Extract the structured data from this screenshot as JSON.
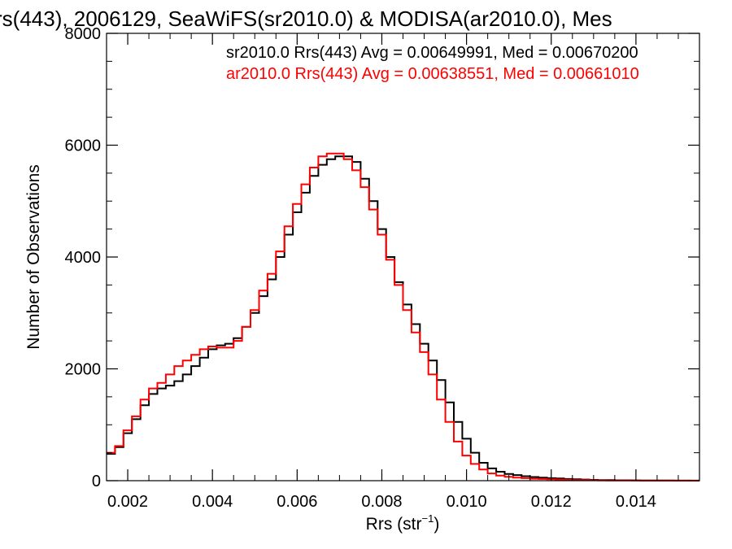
{
  "chart_data": {
    "type": "line",
    "step": true,
    "title": "rs(443), 2006129, SeaWiFS(sr2010.0) & MODISA(ar2010.0), Mes",
    "xlabel": "Rrs (str",
    "xlabel_superscript": "−1",
    "xlabel_suffix": ")",
    "ylabel": "Number of Observations",
    "xlim": [
      0.0015,
      0.0155
    ],
    "ylim": [
      0,
      8000
    ],
    "x_ticks": [
      0.002,
      0.004,
      0.006,
      0.008,
      0.01,
      0.012,
      0.014
    ],
    "x_tick_labels": [
      "0.002",
      "0.004",
      "0.006",
      "0.008",
      "0.010",
      "0.012",
      "0.014"
    ],
    "y_ticks": [
      0,
      2000,
      4000,
      6000,
      8000
    ],
    "y_tick_labels": [
      "0",
      "2000",
      "4000",
      "6000",
      "8000"
    ],
    "grid": false,
    "annotations": [
      {
        "text": "sr2010.0 Rrs(443) Avg = 0.00649991, Med = 0.00670200",
        "color": "#000000"
      },
      {
        "text": "ar2010.0 Rrs(443) Avg = 0.00638551, Med = 0.00661010",
        "color": "#ff0000"
      }
    ],
    "series": [
      {
        "color": "#000000",
        "x": [
          0.0015,
          0.0017,
          0.0019,
          0.0021,
          0.0023,
          0.0025,
          0.0027,
          0.0029,
          0.0031,
          0.0033,
          0.0035,
          0.0037,
          0.0039,
          0.0041,
          0.0043,
          0.0045,
          0.0047,
          0.0049,
          0.0051,
          0.0053,
          0.0055,
          0.0057,
          0.0059,
          0.0061,
          0.0063,
          0.0065,
          0.0067,
          0.0069,
          0.0071,
          0.0073,
          0.0075,
          0.0077,
          0.0079,
          0.0081,
          0.0083,
          0.0085,
          0.0087,
          0.0089,
          0.0091,
          0.0093,
          0.0095,
          0.0097,
          0.0099,
          0.0101,
          0.0103,
          0.0105,
          0.0107,
          0.0109,
          0.0111,
          0.0113,
          0.0115,
          0.0117,
          0.0119,
          0.0121,
          0.0123,
          0.0125,
          0.0127,
          0.0129,
          0.0131,
          0.0133,
          0.0135,
          0.0137,
          0.0139,
          0.0141,
          0.0143,
          0.0145,
          0.0147,
          0.0149,
          0.0151,
          0.0153,
          0.0155
        ],
        "y": [
          480,
          600,
          850,
          1100,
          1350,
          1550,
          1650,
          1700,
          1780,
          1900,
          2050,
          2200,
          2350,
          2420,
          2450,
          2550,
          2750,
          3000,
          3300,
          3600,
          4000,
          4400,
          4800,
          5150,
          5450,
          5650,
          5750,
          5800,
          5800,
          5700,
          5400,
          5000,
          4500,
          4000,
          3550,
          3150,
          2800,
          2450,
          2150,
          1800,
          1400,
          1050,
          750,
          500,
          320,
          220,
          160,
          120,
          100,
          80,
          65,
          55,
          45,
          40,
          30,
          25,
          20,
          15,
          12,
          10,
          8,
          7,
          6,
          5,
          4,
          3,
          3,
          2,
          2,
          1,
          1
        ]
      },
      {
        "color": "#ff0000",
        "x": [
          0.0015,
          0.0017,
          0.0019,
          0.0021,
          0.0023,
          0.0025,
          0.0027,
          0.0029,
          0.0031,
          0.0033,
          0.0035,
          0.0037,
          0.0039,
          0.0041,
          0.0043,
          0.0045,
          0.0047,
          0.0049,
          0.0051,
          0.0053,
          0.0055,
          0.0057,
          0.0059,
          0.0061,
          0.0063,
          0.0065,
          0.0067,
          0.0069,
          0.0071,
          0.0073,
          0.0075,
          0.0077,
          0.0079,
          0.0081,
          0.0083,
          0.0085,
          0.0087,
          0.0089,
          0.0091,
          0.0093,
          0.0095,
          0.0097,
          0.0099,
          0.0101,
          0.0103,
          0.0105,
          0.0107,
          0.0109,
          0.0111,
          0.0113,
          0.0115,
          0.0117,
          0.0119,
          0.0121,
          0.0123,
          0.0125,
          0.0127,
          0.0129,
          0.0131,
          0.0133,
          0.0135,
          0.0137,
          0.0139,
          0.0141,
          0.0143,
          0.0145,
          0.0147,
          0.0149,
          0.0151,
          0.0153,
          0.0155
        ],
        "y": [
          500,
          620,
          900,
          1150,
          1450,
          1650,
          1750,
          1900,
          2050,
          2150,
          2250,
          2350,
          2400,
          2380,
          2380,
          2500,
          2750,
          3050,
          3400,
          3700,
          4100,
          4550,
          4950,
          5300,
          5600,
          5800,
          5850,
          5850,
          5750,
          5550,
          5250,
          4850,
          4400,
          3950,
          3500,
          3050,
          2650,
          2300,
          1900,
          1450,
          1050,
          700,
          450,
          300,
          200,
          130,
          90,
          70,
          55,
          45,
          35,
          30,
          25,
          20,
          15,
          12,
          10,
          8,
          6,
          5,
          4,
          3,
          3,
          2,
          2,
          1,
          1,
          1,
          1,
          0,
          0
        ]
      }
    ]
  }
}
